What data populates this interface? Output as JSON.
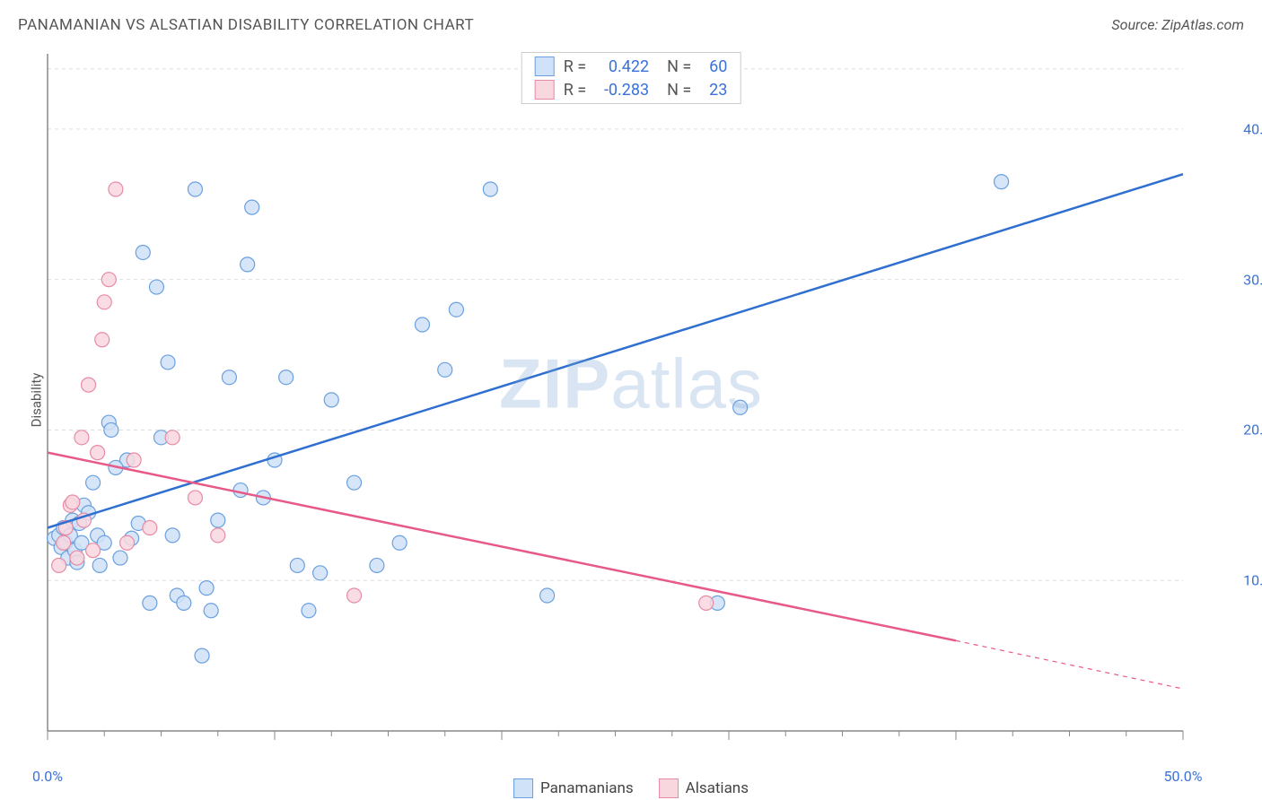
{
  "title": "PANAMANIAN VS ALSATIAN DISABILITY CORRELATION CHART",
  "source": "Source: ZipAtlas.com",
  "ylabel": "Disability",
  "watermark": {
    "left": "ZIP",
    "right": "atlas"
  },
  "chart": {
    "type": "scatter",
    "xlim": [
      0,
      50
    ],
    "ylim": [
      0,
      45
    ],
    "x_ticks_minor_step": 2.5,
    "y_ticks_major": [
      10,
      20,
      30,
      40
    ],
    "y_tick_labels": [
      "10.0%",
      "20.0%",
      "30.0%",
      "40.0%"
    ],
    "x_tick_labels": {
      "left": "0.0%",
      "right": "50.0%"
    },
    "background_color": "#ffffff",
    "grid_color": "#dddddd",
    "axis_color": "#888888",
    "tick_label_color": "#3b71d9",
    "marker_radius": 8,
    "marker_stroke_width": 1.2,
    "line_width": 2.5,
    "series": [
      {
        "name": "Panamanians",
        "color_fill": "#cfe2f7",
        "color_stroke": "#6aa0e0",
        "line_color": "#2f6fd0",
        "R": "0.422",
        "N": "60",
        "regression": {
          "x1": 0,
          "y1": 13.5,
          "x2": 50,
          "y2": 37.0
        },
        "points": [
          [
            0.3,
            12.8
          ],
          [
            0.5,
            13.0
          ],
          [
            0.6,
            12.2
          ],
          [
            0.7,
            13.5
          ],
          [
            0.8,
            12.5
          ],
          [
            0.9,
            11.5
          ],
          [
            1.0,
            13.0
          ],
          [
            1.1,
            14.0
          ],
          [
            1.2,
            12.0
          ],
          [
            1.3,
            11.2
          ],
          [
            1.4,
            13.8
          ],
          [
            1.5,
            12.5
          ],
          [
            1.6,
            15.0
          ],
          [
            1.8,
            14.5
          ],
          [
            2.0,
            16.5
          ],
          [
            2.2,
            13.0
          ],
          [
            2.3,
            11.0
          ],
          [
            2.5,
            12.5
          ],
          [
            2.7,
            20.5
          ],
          [
            2.8,
            20.0
          ],
          [
            3.2,
            11.5
          ],
          [
            3.5,
            18.0
          ],
          [
            3.7,
            12.8
          ],
          [
            4.0,
            13.8
          ],
          [
            4.2,
            31.8
          ],
          [
            4.5,
            8.5
          ],
          [
            4.8,
            29.5
          ],
          [
            5.0,
            19.5
          ],
          [
            5.3,
            24.5
          ],
          [
            5.5,
            13.0
          ],
          [
            5.7,
            9.0
          ],
          [
            6.0,
            8.5
          ],
          [
            6.5,
            36.0
          ],
          [
            7.0,
            9.5
          ],
          [
            7.2,
            8.0
          ],
          [
            7.5,
            14.0
          ],
          [
            8.0,
            23.5
          ],
          [
            8.5,
            16.0
          ],
          [
            8.8,
            31.0
          ],
          [
            9.0,
            34.8
          ],
          [
            9.5,
            15.5
          ],
          [
            10.0,
            18.0
          ],
          [
            10.5,
            23.5
          ],
          [
            11.0,
            11.0
          ],
          [
            11.5,
            8.0
          ],
          [
            12.0,
            10.5
          ],
          [
            12.5,
            22.0
          ],
          [
            13.5,
            16.5
          ],
          [
            14.5,
            11.0
          ],
          [
            15.5,
            12.5
          ],
          [
            16.5,
            27.0
          ],
          [
            17.5,
            24.0
          ],
          [
            18.0,
            28.0
          ],
          [
            19.5,
            36.0
          ],
          [
            22.0,
            9.0
          ],
          [
            29.5,
            8.5
          ],
          [
            30.5,
            21.5
          ],
          [
            42.0,
            36.5
          ],
          [
            6.8,
            5.0
          ],
          [
            3.0,
            17.5
          ]
        ]
      },
      {
        "name": "Alsatians",
        "color_fill": "#f9d7df",
        "color_stroke": "#e78aa5",
        "line_color": "#e75a87",
        "R": "-0.283",
        "N": "23",
        "regression": {
          "x1": 0,
          "y1": 18.5,
          "x2": 40,
          "y2": 6.0,
          "dash_from_x": 40,
          "dash_to_x": 50,
          "dash_to_y": 2.8
        },
        "points": [
          [
            0.5,
            11.0
          ],
          [
            0.7,
            12.5
          ],
          [
            0.8,
            13.5
          ],
          [
            1.0,
            15.0
          ],
          [
            1.1,
            15.2
          ],
          [
            1.3,
            11.5
          ],
          [
            1.5,
            19.5
          ],
          [
            1.6,
            14.0
          ],
          [
            1.8,
            23.0
          ],
          [
            2.0,
            12.0
          ],
          [
            2.2,
            18.5
          ],
          [
            2.4,
            26.0
          ],
          [
            2.5,
            28.5
          ],
          [
            2.7,
            30.0
          ],
          [
            3.0,
            36.0
          ],
          [
            3.5,
            12.5
          ],
          [
            3.8,
            18.0
          ],
          [
            4.5,
            13.5
          ],
          [
            5.5,
            19.5
          ],
          [
            6.5,
            15.5
          ],
          [
            7.5,
            13.0
          ],
          [
            13.5,
            9.0
          ],
          [
            29.0,
            8.5
          ]
        ]
      }
    ],
    "legend_top": {
      "R_label": "R =",
      "N_label": "N =",
      "value_color": "#3b71d9"
    },
    "legend_bottom": [
      {
        "label": "Panamanians",
        "fill": "#cfe2f7",
        "stroke": "#6aa0e0"
      },
      {
        "label": "Alsatians",
        "fill": "#f9d7df",
        "stroke": "#e78aa5"
      }
    ]
  }
}
